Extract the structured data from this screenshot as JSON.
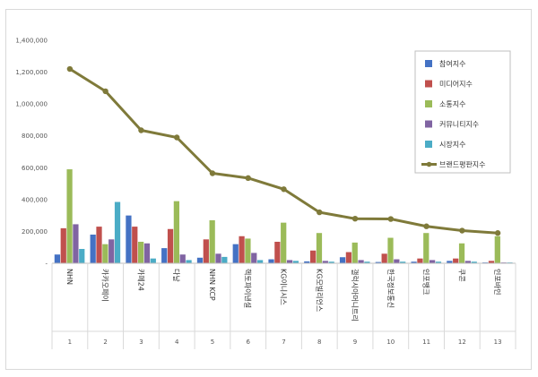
{
  "chart_data": {
    "type": "bar",
    "x": [
      "1",
      "2",
      "3",
      "4",
      "5",
      "6",
      "7",
      "8",
      "9",
      "10",
      "11",
      "12",
      "13"
    ],
    "categories": [
      "NHN",
      "카카오페이",
      "카페24",
      "다날",
      "NHN KCP",
      "헥토파이낸셜",
      "KG이니시스",
      "KG모빌리언스",
      "갤럭시아머니트리",
      "한국정보통신",
      "인포뱅크",
      "쿠콘",
      "인포바인"
    ],
    "ylim": [
      0,
      1400000
    ],
    "yticks": [
      0,
      200000,
      400000,
      600000,
      800000,
      1000000,
      1200000,
      1400000
    ],
    "ytick_labels": [
      "-",
      "200,000",
      "400,000",
      "600,000",
      "800,000",
      "1,000,000",
      "1,200,000",
      "1,400,000"
    ],
    "series": [
      {
        "name": "참여지수",
        "color": "#4472c4",
        "values": [
          55000,
          180000,
          300000,
          95000,
          35000,
          120000,
          25000,
          12000,
          38000,
          8000,
          10000,
          15000,
          5000
        ]
      },
      {
        "name": "미디어지수",
        "color": "#c0504d",
        "values": [
          220000,
          230000,
          230000,
          215000,
          150000,
          170000,
          135000,
          80000,
          70000,
          60000,
          30000,
          30000,
          15000
        ]
      },
      {
        "name": "소통지수",
        "color": "#9bbb59",
        "values": [
          590000,
          120000,
          135000,
          390000,
          270000,
          155000,
          255000,
          190000,
          130000,
          160000,
          190000,
          125000,
          170000
        ]
      },
      {
        "name": "커뮤니티지수",
        "color": "#8064a2",
        "values": [
          245000,
          150000,
          125000,
          55000,
          60000,
          65000,
          20000,
          15000,
          20000,
          25000,
          20000,
          15000,
          5000
        ]
      },
      {
        "name": "시장지수",
        "color": "#4bacc6",
        "values": [
          90000,
          385000,
          30000,
          20000,
          40000,
          20000,
          15000,
          10000,
          10000,
          10000,
          10000,
          10000,
          5000
        ]
      },
      {
        "name": "브랜드평판지수",
        "type": "line",
        "color": "#7f7a3a",
        "values": [
          1220000,
          1080000,
          835000,
          790000,
          565000,
          535000,
          465000,
          320000,
          280000,
          278000,
          232000,
          205000,
          190000
        ]
      }
    ],
    "legend_position": "right"
  }
}
